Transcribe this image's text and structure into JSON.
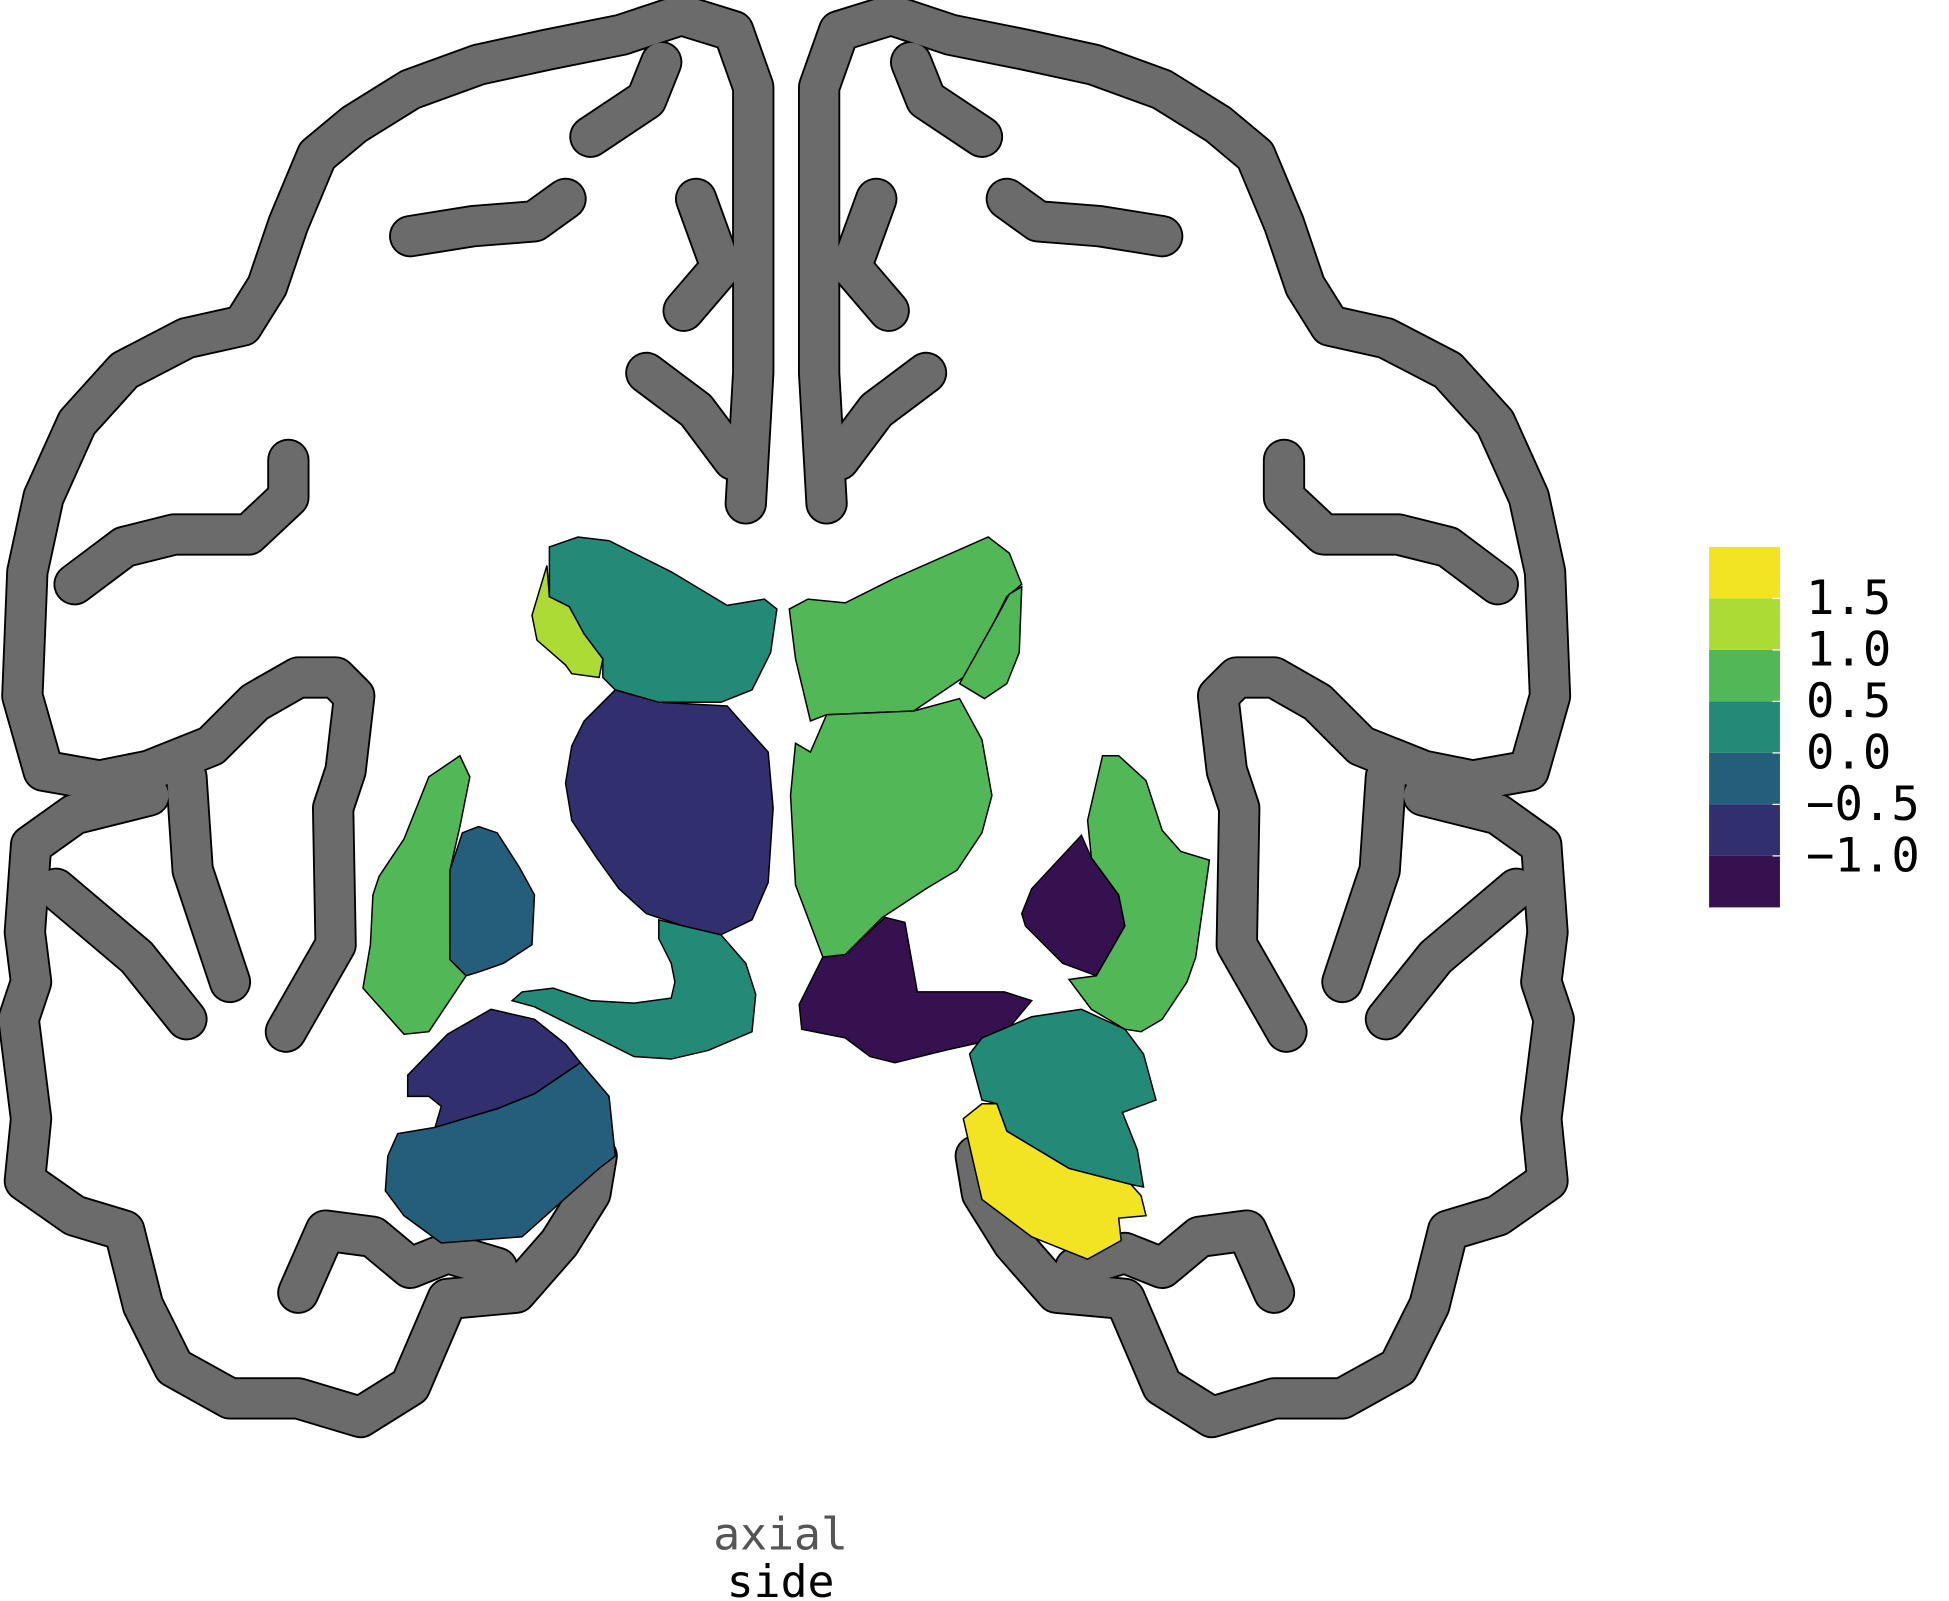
{
  "chart_data": {
    "type": "atlas",
    "subtitle": "axial",
    "xlabel": "side",
    "values": [
      1.25,
      0.25,
      -0.75,
      0.25,
      0.75,
      -0.25,
      -0.75,
      -0.25,
      0.75,
      0.75,
      0.75,
      -1.25,
      -1.25,
      0.75,
      0.25,
      1.75
    ],
    "colorbar": {
      "ylim": [
        -1.5,
        2.0
      ],
      "yticks": [
        {
          "value": -1,
          "label": "−1.0"
        },
        {
          "value": -0.5,
          "label": "−0.5"
        },
        {
          "value": 0,
          "label": "0.0"
        },
        0.5,
        {
          "value": 1,
          "label": "1.0"
        },
        1.5
      ],
      "colors": [
        "#361150",
        "#322f6e",
        "#255e7a",
        "#228a76",
        "#52b757",
        "#addb36",
        "#f2e423"
      ]
    },
    "cortex_color": "#6b6b6b"
  }
}
